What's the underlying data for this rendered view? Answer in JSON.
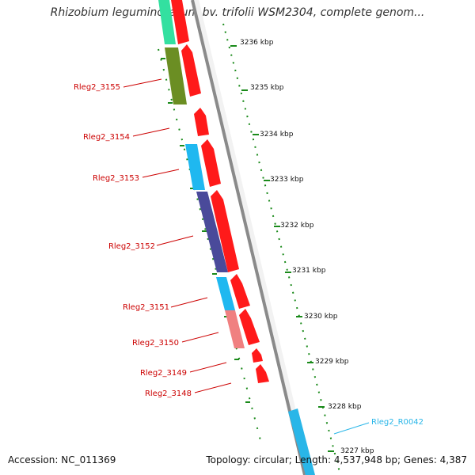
{
  "title": "Rhizobium leguminosarum bv. trifolii WSM2304, complete genom...",
  "accession": "Accession: NC_011369",
  "meta": "Topology: circular; Length: 4,537,948 bp; Genes: 4,387",
  "kbp_labels": [
    "3236 kbp",
    "3235 kbp",
    "3234 kbp",
    "3233 kbp",
    "3232 kbp",
    "3231 kbp",
    "3230 kbp",
    "3229 kbp",
    "3228 kbp",
    "3227 kbp"
  ],
  "gene_labels": [
    "Rleg2_3155",
    "Rleg2_3154",
    "Rleg2_3153",
    "Rleg2_3152",
    "Rleg2_3151",
    "Rleg2_3150",
    "Rleg2_3149",
    "Rleg2_3148"
  ],
  "rna_label": "Rleg2_R0042",
  "colors": {
    "cds": "#ff1a1a",
    "backbone": "#8a8a8a",
    "tick": "#1a8a1a",
    "teal": "#33e0a0",
    "olive": "#6b8e23",
    "cyan": "#1fb8f0",
    "navy": "#4a4a9a",
    "pink": "#f08080"
  }
}
